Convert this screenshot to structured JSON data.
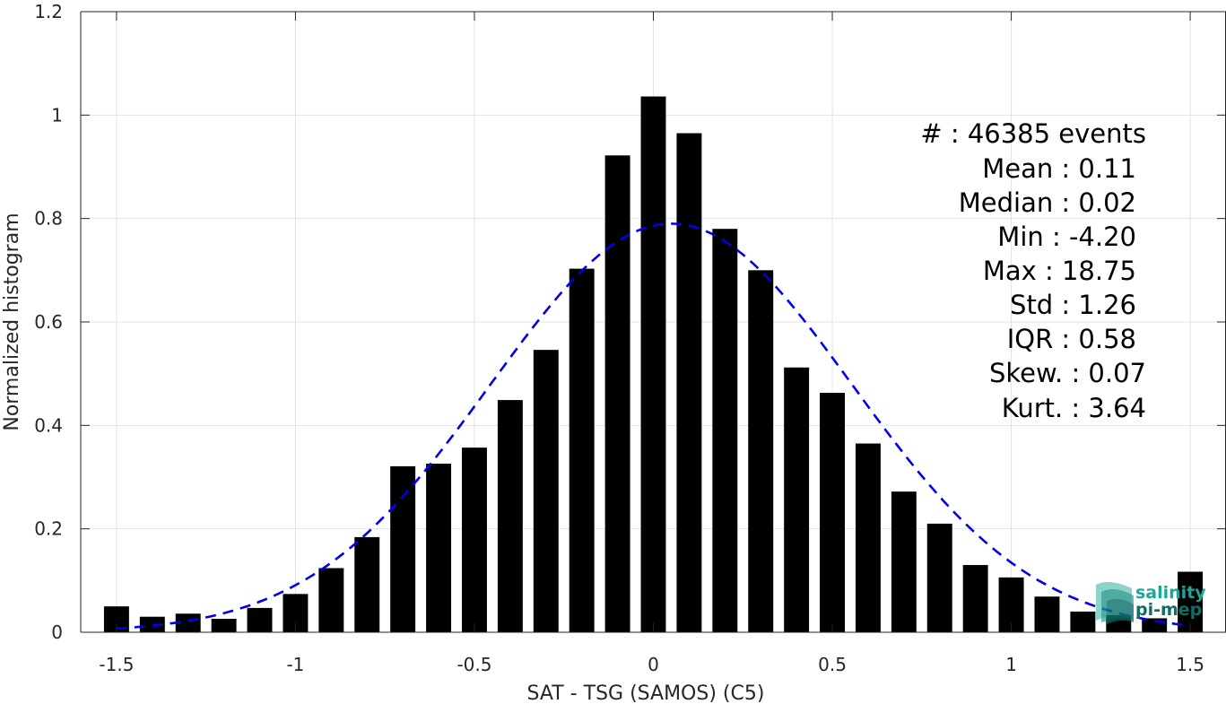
{
  "chart_data": {
    "type": "bar",
    "title": "",
    "xlabel": "SAT - TSG (SAMOS) (C5)",
    "ylabel": "Normalized histogram",
    "xlim": [
      -1.6,
      1.6
    ],
    "ylim": [
      0,
      1.2
    ],
    "xticks": [
      -1.5,
      -1,
      -0.5,
      0,
      0.5,
      1,
      1.5
    ],
    "xtick_labels": [
      "-1.5",
      "-1",
      "-0.5",
      "0",
      "0.5",
      "1",
      "1.5"
    ],
    "yticks": [
      0,
      0.2,
      0.4,
      0.6,
      0.8,
      1,
      1.2
    ],
    "ytick_labels": [
      "0",
      "0.2",
      "0.4",
      "0.6",
      "0.8",
      "1",
      "1.2"
    ],
    "grid": true,
    "bar_color": "#000000",
    "bin_width": 0.1,
    "x": [
      -1.5,
      -1.4,
      -1.3,
      -1.2,
      -1.1,
      -1.0,
      -0.9,
      -0.8,
      -0.7,
      -0.6,
      -0.5,
      -0.4,
      -0.3,
      -0.2,
      -0.1,
      0.0,
      0.1,
      0.2,
      0.3,
      0.4,
      0.5,
      0.6,
      0.7,
      0.8,
      0.9,
      1.0,
      1.1,
      1.2,
      1.3,
      1.4,
      1.5
    ],
    "values": [
      0.05,
      0.03,
      0.036,
      0.026,
      0.047,
      0.074,
      0.124,
      0.184,
      0.321,
      0.326,
      0.357,
      0.449,
      0.546,
      0.703,
      0.922,
      1.036,
      0.965,
      0.78,
      0.7,
      0.512,
      0.463,
      0.365,
      0.272,
      0.21,
      0.13,
      0.106,
      0.069,
      0.04,
      0.033,
      0.027,
      0.117
    ],
    "fit_curve": {
      "type": "gaussian",
      "mean": 0.05,
      "std": 0.505,
      "peak": 0.79,
      "color": "#0000ee",
      "style": "dashed"
    },
    "annotation_lines": [
      "#  : 46385 events",
      "Mean : 0.11",
      "Median : 0.02",
      "Min : -4.20",
      "Max : 18.75",
      "Std : 1.26",
      "IQR : 0.58",
      "Skew. : 0.07",
      "Kurt. : 3.64"
    ]
  },
  "logo": {
    "line1": "salinity",
    "line2": "pi-mep",
    "color": "#1aa89a"
  }
}
